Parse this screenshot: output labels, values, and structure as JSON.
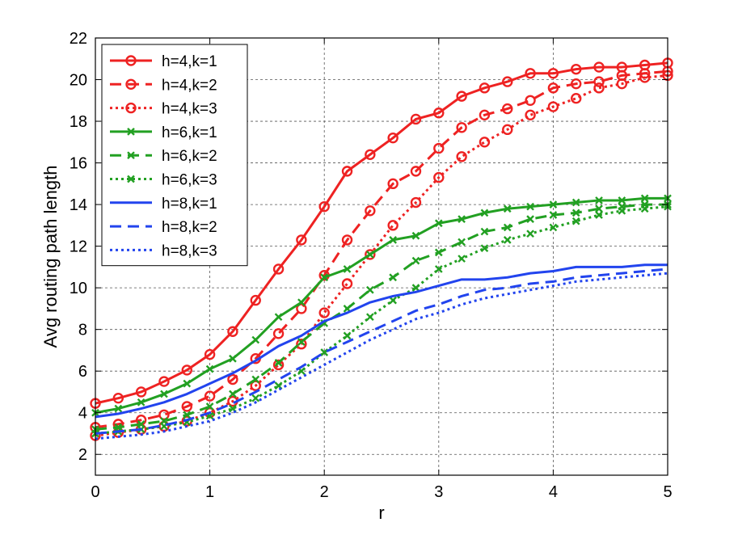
{
  "chart_data": {
    "type": "line",
    "title": "",
    "xlabel": "r",
    "ylabel": "Avg routing path length",
    "xlim": [
      0,
      5
    ],
    "ylim": [
      1,
      22
    ],
    "xticks": [
      0,
      1,
      2,
      3,
      4,
      5
    ],
    "yticks": [
      2,
      4,
      6,
      8,
      10,
      12,
      14,
      16,
      18,
      20,
      22
    ],
    "grid": true,
    "legend_position": "top-left",
    "x": [
      0,
      0.2,
      0.4,
      0.6,
      0.8,
      1.0,
      1.2,
      1.4,
      1.6,
      1.8,
      2.0,
      2.2,
      2.4,
      2.6,
      2.8,
      3.0,
      3.2,
      3.4,
      3.6,
      3.8,
      4.0,
      4.2,
      4.4,
      4.6,
      4.8,
      5.0
    ],
    "series": [
      {
        "name": "h=4,k=1",
        "color": "#ee2222",
        "dash": "solid",
        "marker": "circle",
        "values": [
          4.45,
          4.7,
          5.0,
          5.5,
          6.05,
          6.8,
          7.9,
          9.4,
          10.9,
          12.3,
          13.9,
          15.6,
          16.4,
          17.2,
          18.1,
          18.4,
          19.2,
          19.6,
          19.9,
          20.3,
          20.3,
          20.5,
          20.6,
          20.6,
          20.7,
          20.8
        ]
      },
      {
        "name": "h=4,k=2",
        "color": "#ee2222",
        "dash": "dashed",
        "marker": "circle",
        "values": [
          3.3,
          3.45,
          3.65,
          3.9,
          4.3,
          4.8,
          5.6,
          6.6,
          7.8,
          9.0,
          10.6,
          12.3,
          13.7,
          15.0,
          15.6,
          16.7,
          17.7,
          18.3,
          18.6,
          19.0,
          19.6,
          19.8,
          19.9,
          20.2,
          20.3,
          20.4
        ]
      },
      {
        "name": "h=4,k=3",
        "color": "#ee2222",
        "dash": "dotted",
        "marker": "circle",
        "values": [
          2.9,
          3.05,
          3.2,
          3.35,
          3.6,
          4.0,
          4.55,
          5.3,
          6.3,
          7.3,
          8.8,
          10.2,
          11.6,
          13.0,
          14.1,
          15.3,
          16.3,
          17.0,
          17.6,
          18.3,
          18.7,
          19.1,
          19.6,
          19.8,
          20.1,
          20.2
        ]
      },
      {
        "name": "h=6,k=1",
        "color": "#22a022",
        "dash": "solid",
        "marker": "x",
        "values": [
          4.0,
          4.2,
          4.5,
          4.9,
          5.4,
          6.1,
          6.6,
          7.5,
          8.6,
          9.3,
          10.5,
          10.9,
          11.6,
          12.3,
          12.5,
          13.1,
          13.3,
          13.6,
          13.8,
          13.9,
          14.0,
          14.1,
          14.2,
          14.2,
          14.3,
          14.3
        ]
      },
      {
        "name": "h=6,k=2",
        "color": "#22a022",
        "dash": "dashed",
        "marker": "x",
        "values": [
          3.2,
          3.3,
          3.45,
          3.6,
          3.9,
          4.3,
          4.9,
          5.6,
          6.4,
          7.4,
          8.3,
          9.0,
          9.9,
          10.5,
          11.3,
          11.7,
          12.2,
          12.7,
          12.9,
          13.3,
          13.5,
          13.6,
          13.8,
          13.9,
          14.0,
          14.0
        ]
      },
      {
        "name": "h=6,k=3",
        "color": "#22a022",
        "dash": "dotted",
        "marker": "x",
        "values": [
          3.0,
          3.1,
          3.2,
          3.35,
          3.55,
          3.85,
          4.2,
          4.7,
          5.3,
          6.0,
          6.9,
          7.7,
          8.6,
          9.4,
          10.0,
          10.9,
          11.4,
          11.9,
          12.3,
          12.6,
          12.9,
          13.2,
          13.5,
          13.7,
          13.8,
          13.9
        ]
      },
      {
        "name": "h=8,k=1",
        "color": "#2244ee",
        "dash": "solid",
        "marker": "none",
        "values": [
          3.8,
          3.95,
          4.2,
          4.5,
          4.9,
          5.4,
          5.9,
          6.5,
          7.2,
          7.7,
          8.4,
          8.8,
          9.3,
          9.6,
          9.8,
          10.1,
          10.4,
          10.4,
          10.5,
          10.7,
          10.8,
          11.0,
          11.0,
          11.0,
          11.1,
          11.1
        ]
      },
      {
        "name": "h=8,k=2",
        "color": "#2244ee",
        "dash": "dashed",
        "marker": "none",
        "values": [
          3.0,
          3.1,
          3.2,
          3.4,
          3.65,
          4.0,
          4.45,
          5.0,
          5.6,
          6.2,
          6.9,
          7.4,
          7.9,
          8.4,
          8.9,
          9.2,
          9.6,
          9.9,
          10.0,
          10.2,
          10.3,
          10.5,
          10.6,
          10.7,
          10.8,
          10.9
        ]
      },
      {
        "name": "h=8,k=3",
        "color": "#2244ee",
        "dash": "dotted",
        "marker": "none",
        "values": [
          2.75,
          2.85,
          2.95,
          3.1,
          3.35,
          3.6,
          4.0,
          4.5,
          5.1,
          5.7,
          6.3,
          6.9,
          7.5,
          8.0,
          8.5,
          8.8,
          9.2,
          9.5,
          9.7,
          9.9,
          10.1,
          10.3,
          10.4,
          10.5,
          10.6,
          10.7
        ]
      }
    ]
  }
}
